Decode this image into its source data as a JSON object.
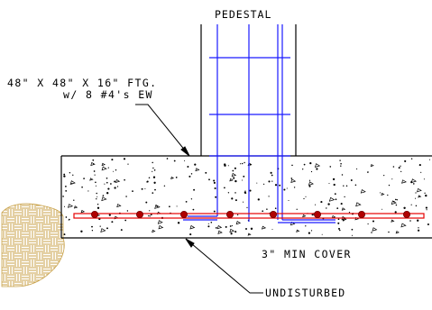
{
  "labels": {
    "pedestal": "PEDESTAL",
    "footing_line1": "48\" X 48\" X 16\" FTG.",
    "footing_line2": "w/ 8 #4's EW",
    "cover": "3\" MIN COVER",
    "soil": "UNDISTURBED"
  },
  "colors": {
    "line": "#000000",
    "rebar_vertical": "#1a1aff",
    "rebar_bottom": "#e60000",
    "rebar_dot": "#b00000",
    "soil_hatch": "#c9a24a",
    "background": "#ffffff"
  },
  "rebar_count_visible": 8
}
